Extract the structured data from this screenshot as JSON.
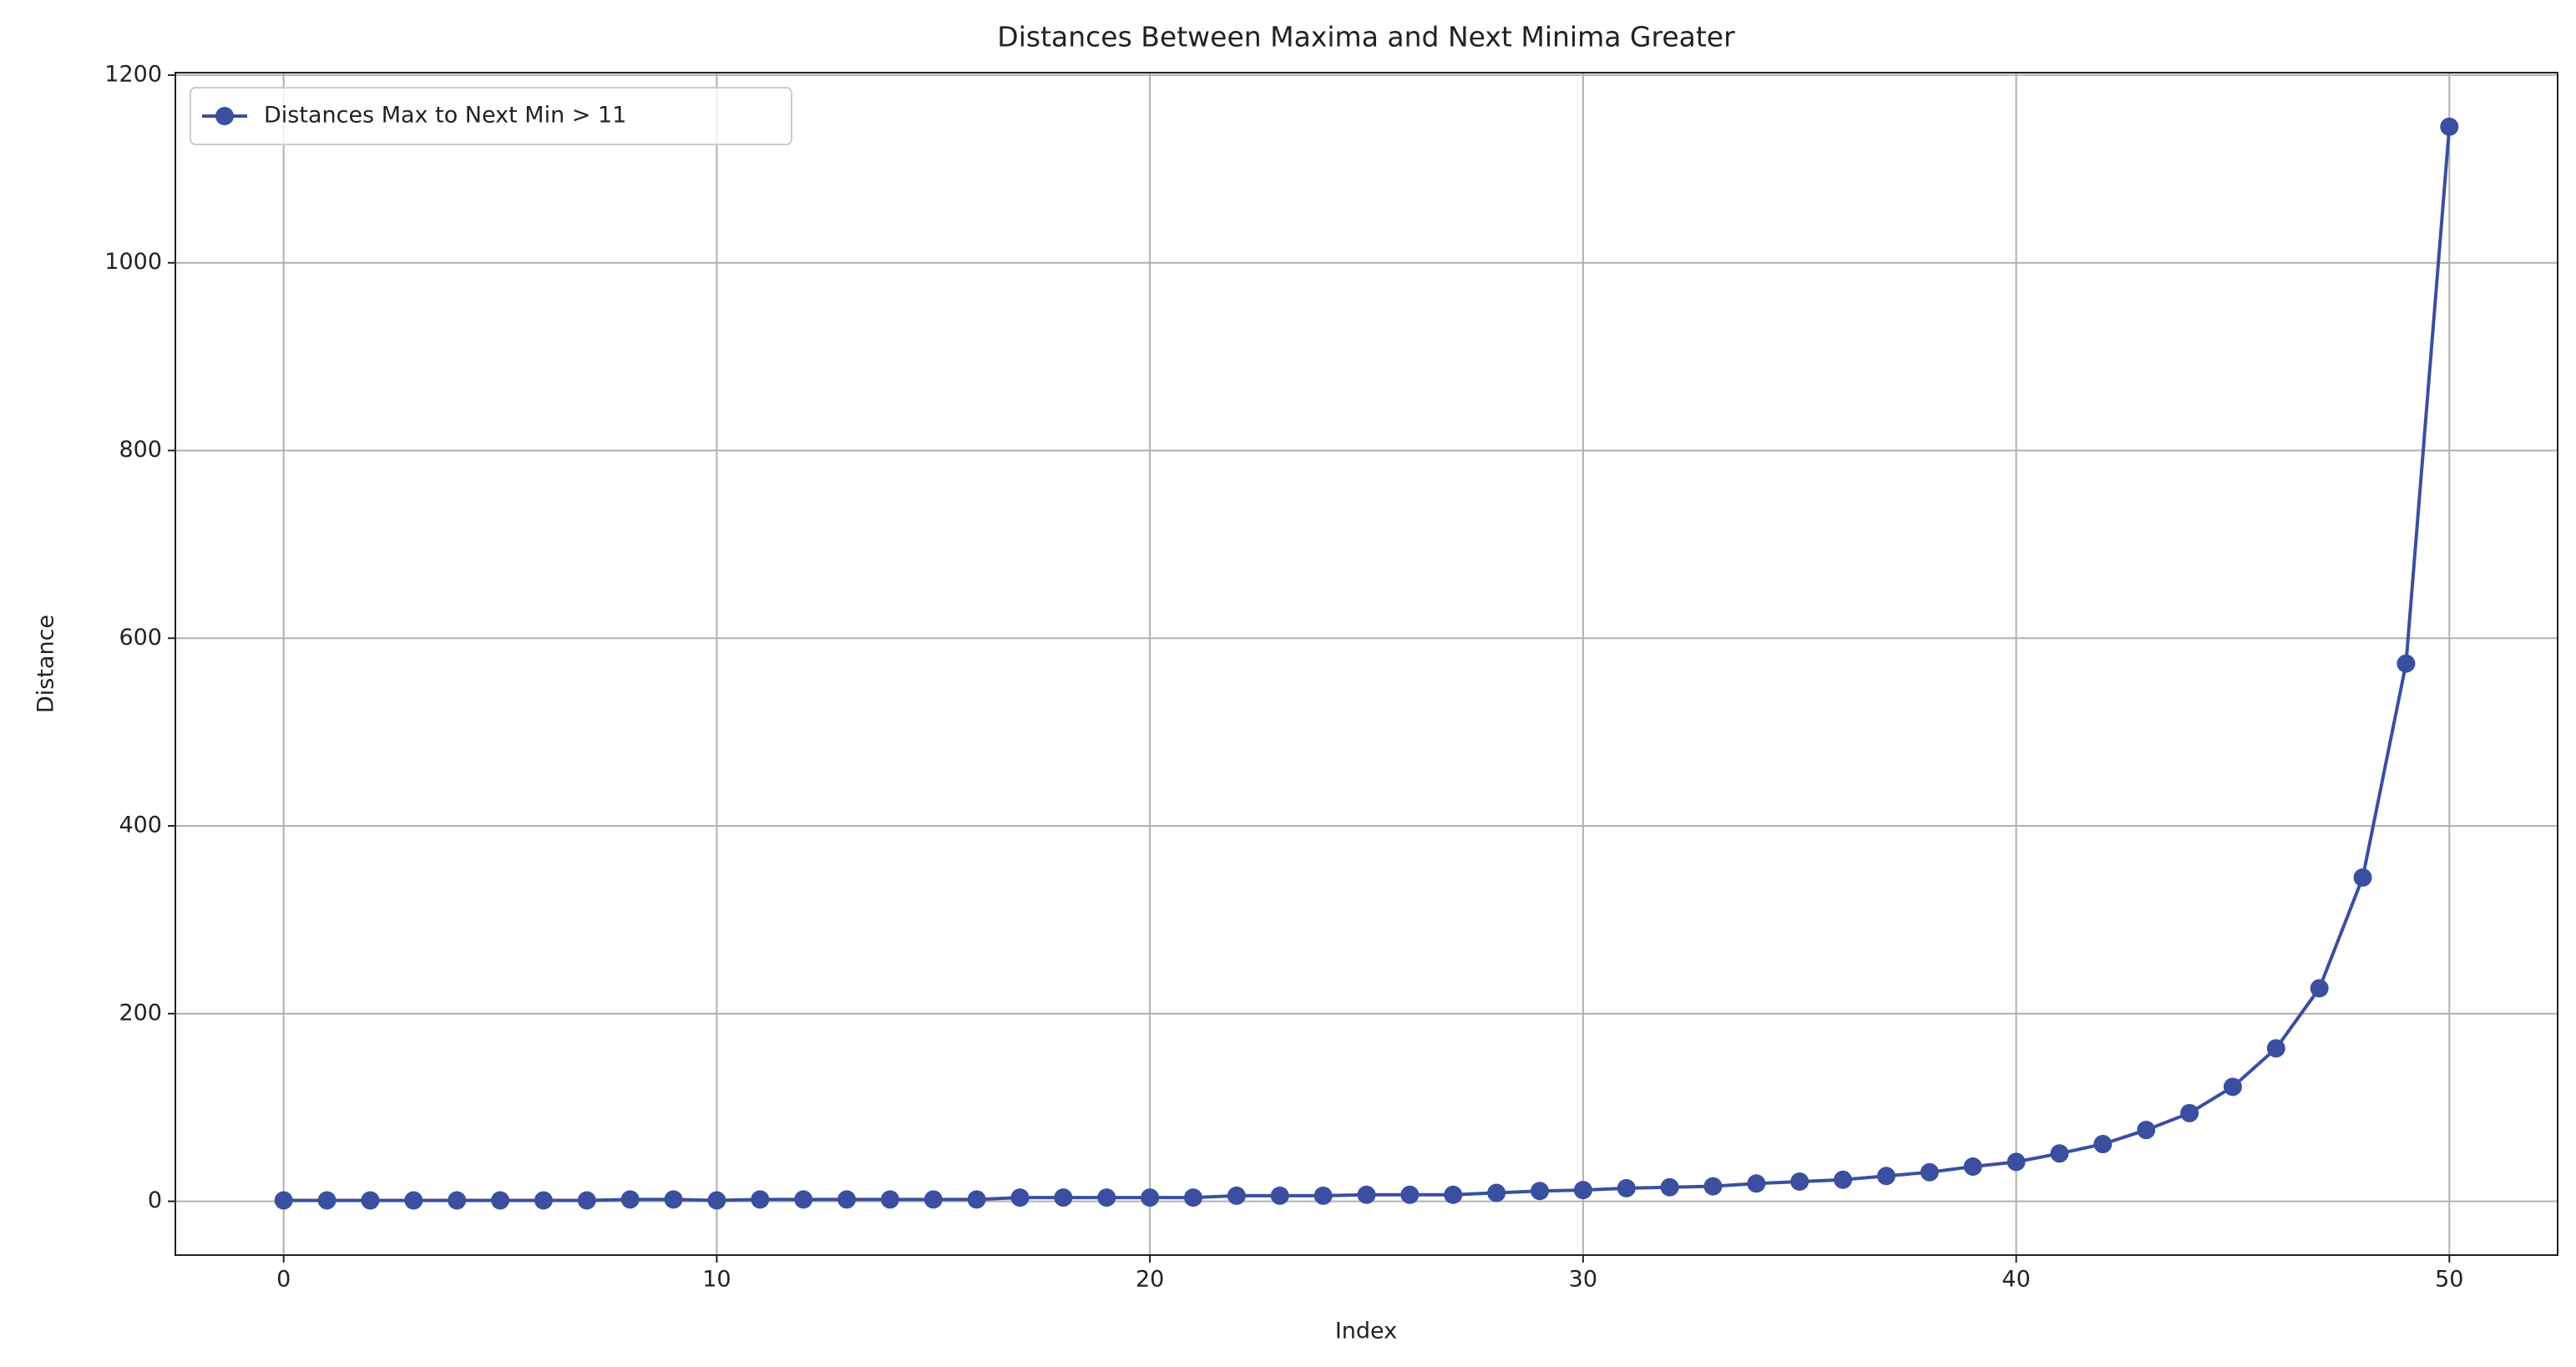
{
  "chart_data": {
    "type": "line",
    "title": "Distances Between Maxima and Next Minima Greater",
    "xlabel": "Index",
    "ylabel": "Distance",
    "x": [
      0,
      1,
      2,
      3,
      4,
      5,
      6,
      7,
      8,
      9,
      10,
      11,
      12,
      13,
      14,
      15,
      16,
      17,
      18,
      19,
      20,
      21,
      22,
      23,
      24,
      25,
      26,
      27,
      28,
      29,
      30,
      31,
      32,
      33,
      34,
      35,
      36,
      37,
      38,
      39,
      40,
      41,
      42,
      43,
      44,
      45,
      46,
      47,
      48,
      49,
      50
    ],
    "series": [
      {
        "name": "Distances Max to Next Min > 11",
        "color": "#3a4fa0",
        "values": [
          1,
          1,
          1,
          1,
          1,
          1,
          1,
          1,
          2,
          2,
          1,
          2,
          2,
          2,
          2,
          2,
          2,
          4,
          4,
          4,
          4,
          4,
          6,
          6,
          6,
          7,
          7,
          7,
          9,
          11,
          12,
          14,
          15,
          16,
          19,
          21,
          23,
          27,
          31,
          37,
          42,
          51,
          61,
          76,
          94,
          122,
          163,
          227,
          345,
          573,
          1145
        ]
      }
    ],
    "xlim": [
      -2.5,
      52.5
    ],
    "ylim": [
      -57.3,
      1202.6
    ],
    "xticks": [
      0,
      10,
      20,
      30,
      40,
      50
    ],
    "yticks": [
      0,
      200,
      400,
      600,
      800,
      1000,
      1200
    ],
    "grid": true,
    "legend": "upper left"
  }
}
